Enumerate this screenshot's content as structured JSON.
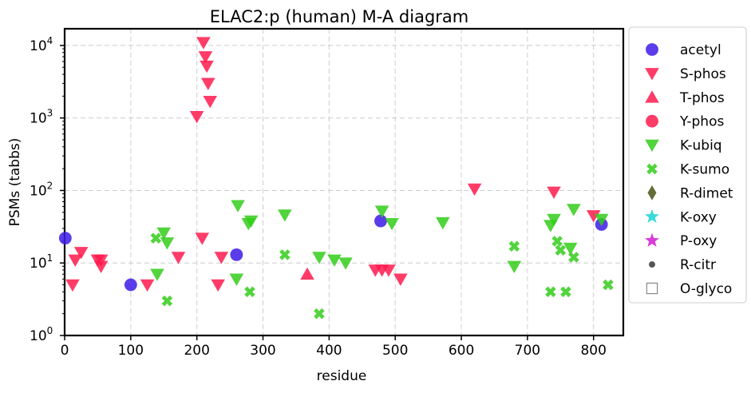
{
  "chart_data": {
    "type": "scatter",
    "title": "ELAC2:p (human) M-A diagram",
    "xlabel": "residue",
    "ylabel": "PSMs (tabbs)",
    "xlim": [
      0,
      845
    ],
    "ylim": [
      1,
      17000
    ],
    "yscale": "log",
    "grid": true,
    "legend_position": "outside-right",
    "x_ticks": [
      0,
      100,
      200,
      300,
      400,
      500,
      600,
      700,
      800
    ],
    "y_ticks": [
      {
        "value": 1,
        "base": "10",
        "exp": "0"
      },
      {
        "value": 10,
        "base": "10",
        "exp": "1"
      },
      {
        "value": 100,
        "base": "10",
        "exp": "2"
      },
      {
        "value": 1000,
        "base": "10",
        "exp": "3"
      },
      {
        "value": 10000,
        "base": "10",
        "exp": "4"
      }
    ],
    "series": [
      {
        "name": "acetyl",
        "marker": "circle",
        "color": "#3d1ae6",
        "points": [
          [
            1,
            22
          ],
          [
            100,
            5
          ],
          [
            260,
            13
          ],
          [
            478,
            38
          ],
          [
            812,
            34
          ]
        ]
      },
      {
        "name": "S-phos",
        "marker": "triangle-down",
        "color": "#ff1a4d",
        "points": [
          [
            12,
            5
          ],
          [
            16,
            11
          ],
          [
            25,
            14
          ],
          [
            50,
            11
          ],
          [
            55,
            11
          ],
          [
            55,
            9
          ],
          [
            125,
            5
          ],
          [
            172,
            12
          ],
          [
            200,
            1050
          ],
          [
            208,
            22
          ],
          [
            210,
            11000
          ],
          [
            213,
            7000
          ],
          [
            215,
            5200
          ],
          [
            217,
            3000
          ],
          [
            220,
            1700
          ],
          [
            232,
            5
          ],
          [
            237,
            12
          ],
          [
            470,
            8
          ],
          [
            480,
            8
          ],
          [
            490,
            8
          ],
          [
            508,
            6
          ],
          [
            620,
            105
          ],
          [
            740,
            95
          ],
          [
            800,
            45
          ]
        ]
      },
      {
        "name": "T-phos",
        "marker": "triangle-up",
        "color": "#ff1a4d",
        "points": [
          [
            367,
            7
          ]
        ]
      },
      {
        "name": "Y-phos",
        "marker": "circle",
        "color": "#ff1a4d",
        "points": []
      },
      {
        "name": "K-ubiq",
        "marker": "triangle-down",
        "color": "#33cc1a",
        "points": [
          [
            140,
            7
          ],
          [
            150,
            26
          ],
          [
            155,
            19
          ],
          [
            260,
            6
          ],
          [
            262,
            62
          ],
          [
            278,
            35
          ],
          [
            282,
            38
          ],
          [
            333,
            46
          ],
          [
            385,
            12
          ],
          [
            408,
            11
          ],
          [
            425,
            10
          ],
          [
            480,
            52
          ],
          [
            495,
            35
          ],
          [
            572,
            36
          ],
          [
            680,
            9
          ],
          [
            735,
            33
          ],
          [
            740,
            40
          ],
          [
            765,
            16
          ],
          [
            770,
            55
          ],
          [
            812,
            40
          ]
        ]
      },
      {
        "name": "K-sumo",
        "marker": "x",
        "color": "#33cc1a",
        "points": [
          [
            138,
            22
          ],
          [
            155,
            3
          ],
          [
            280,
            4
          ],
          [
            333,
            13
          ],
          [
            385,
            2
          ],
          [
            680,
            17
          ],
          [
            735,
            4
          ],
          [
            745,
            20
          ],
          [
            750,
            15
          ],
          [
            758,
            4
          ],
          [
            770,
            12
          ],
          [
            822,
            5
          ]
        ]
      },
      {
        "name": "R-dimet",
        "marker": "diamond",
        "color": "#4a5214",
        "points": []
      },
      {
        "name": "K-oxy",
        "marker": "star",
        "color": "#1ad2d2",
        "points": []
      },
      {
        "name": "P-oxy",
        "marker": "star",
        "color": "#d21ad2",
        "points": []
      },
      {
        "name": "R-citr",
        "marker": "dot",
        "color": "#555555",
        "points": []
      },
      {
        "name": "O-glyco",
        "marker": "square-open",
        "color": "#888888",
        "points": []
      }
    ]
  }
}
